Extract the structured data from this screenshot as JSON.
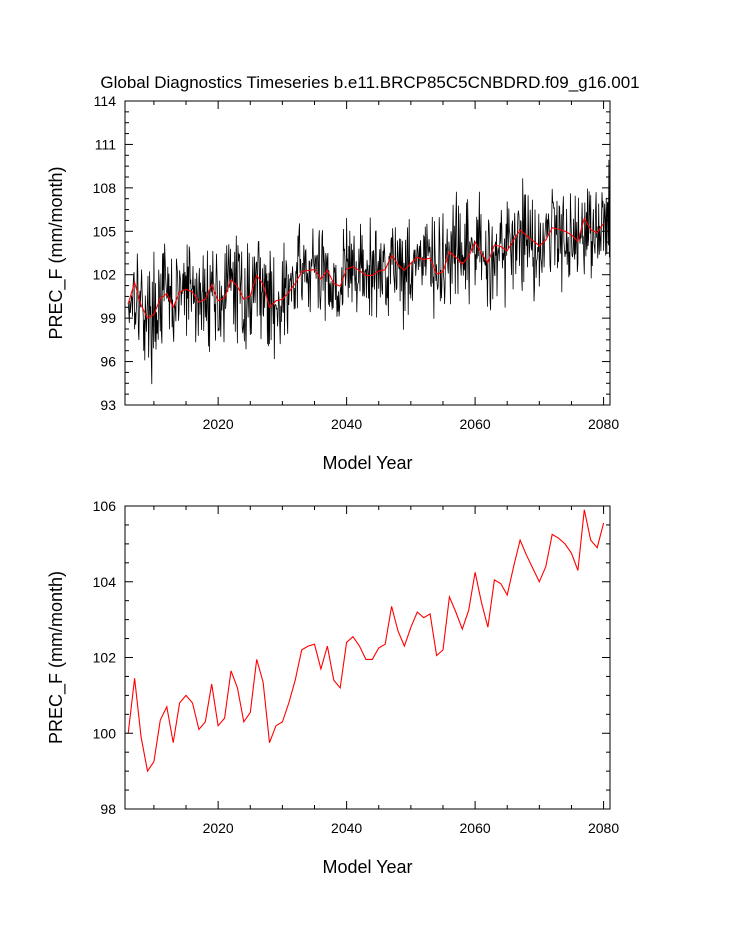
{
  "title": "Global Diagnostics Timeseries b.e11.BRCP85C5CNBDRD.f09_g16.001",
  "colors": {
    "monthly_line": "#000000",
    "annual_line": "#ff0000",
    "axes": "#000000"
  },
  "chart_data": [
    {
      "type": "line",
      "name": "monthly-and-annual-timeseries",
      "xlabel": "Model Year",
      "ylabel": "PREC_F (mm/month)",
      "xlim": [
        2005.5,
        2081
      ],
      "ylim": [
        93,
        114
      ],
      "xticks": [
        2020,
        2040,
        2060,
        2080
      ],
      "yticks": [
        93,
        96,
        99,
        102,
        105,
        108,
        111,
        114
      ],
      "series": [
        {
          "name": "monthly",
          "color": "#000000",
          "x_start": 2006.0,
          "x_step": 0.08333,
          "note": "Monthly values fluctuate approx. +/-3 mm/month around the annual mean; trend from ~100 to ~105.5",
          "generated_from_annual_mean": true,
          "amplitude": 3.0,
          "seed": 17
        },
        {
          "name": "annual_mean",
          "color": "#ff0000",
          "x": [
            2006,
            2007,
            2008,
            2009,
            2010,
            2011,
            2012,
            2013,
            2014,
            2015,
            2016,
            2017,
            2018,
            2019,
            2020,
            2021,
            2022,
            2023,
            2024,
            2025,
            2026,
            2027,
            2028,
            2029,
            2030,
            2031,
            2032,
            2033,
            2034,
            2035,
            2036,
            2037,
            2038,
            2039,
            2040,
            2041,
            2042,
            2043,
            2044,
            2045,
            2046,
            2047,
            2048,
            2049,
            2050,
            2051,
            2052,
            2053,
            2054,
            2055,
            2056,
            2057,
            2058,
            2059,
            2060,
            2061,
            2062,
            2063,
            2064,
            2065,
            2066,
            2067,
            2068,
            2069,
            2070,
            2071,
            2072,
            2073,
            2074,
            2075,
            2076,
            2077,
            2078,
            2079,
            2080
          ],
          "values": [
            100.0,
            101.45,
            99.9,
            99.0,
            99.25,
            100.35,
            100.7,
            99.75,
            100.8,
            101.0,
            100.8,
            100.1,
            100.3,
            101.3,
            100.2,
            100.4,
            101.65,
            101.2,
            100.3,
            100.55,
            101.95,
            101.35,
            99.75,
            100.2,
            100.3,
            100.8,
            101.4,
            102.2,
            102.3,
            102.35,
            101.7,
            102.3,
            101.4,
            101.2,
            102.4,
            102.55,
            102.3,
            101.95,
            101.95,
            102.25,
            102.35,
            103.35,
            102.7,
            102.3,
            102.8,
            103.2,
            103.05,
            103.15,
            102.05,
            102.2,
            103.6,
            103.2,
            102.75,
            103.25,
            104.25,
            103.45,
            102.8,
            104.05,
            103.95,
            103.65,
            104.4,
            105.1,
            104.7,
            104.35,
            104.0,
            104.4,
            105.25,
            105.15,
            105.0,
            104.75,
            104.3,
            105.9,
            105.1,
            104.9,
            105.55
          ]
        }
      ]
    },
    {
      "type": "line",
      "name": "annual-timeseries",
      "xlabel": "Model Year",
      "ylabel": "PREC_F (mm/month)",
      "xlim": [
        2005.5,
        2081
      ],
      "ylim": [
        98,
        106
      ],
      "xticks": [
        2020,
        2040,
        2060,
        2080
      ],
      "yticks": [
        98,
        100,
        102,
        104,
        106
      ],
      "series": [
        {
          "name": "annual_mean",
          "color": "#ff0000",
          "x": [
            2006,
            2007,
            2008,
            2009,
            2010,
            2011,
            2012,
            2013,
            2014,
            2015,
            2016,
            2017,
            2018,
            2019,
            2020,
            2021,
            2022,
            2023,
            2024,
            2025,
            2026,
            2027,
            2028,
            2029,
            2030,
            2031,
            2032,
            2033,
            2034,
            2035,
            2036,
            2037,
            2038,
            2039,
            2040,
            2041,
            2042,
            2043,
            2044,
            2045,
            2046,
            2047,
            2048,
            2049,
            2050,
            2051,
            2052,
            2053,
            2054,
            2055,
            2056,
            2057,
            2058,
            2059,
            2060,
            2061,
            2062,
            2063,
            2064,
            2065,
            2066,
            2067,
            2068,
            2069,
            2070,
            2071,
            2072,
            2073,
            2074,
            2075,
            2076,
            2077,
            2078,
            2079,
            2080
          ],
          "values": [
            100.0,
            101.45,
            99.9,
            99.0,
            99.25,
            100.35,
            100.7,
            99.75,
            100.8,
            101.0,
            100.8,
            100.1,
            100.3,
            101.3,
            100.2,
            100.4,
            101.65,
            101.2,
            100.3,
            100.55,
            101.95,
            101.35,
            99.75,
            100.2,
            100.3,
            100.8,
            101.4,
            102.2,
            102.3,
            102.35,
            101.7,
            102.3,
            101.4,
            101.2,
            102.4,
            102.55,
            102.3,
            101.95,
            101.95,
            102.25,
            102.35,
            103.35,
            102.7,
            102.3,
            102.8,
            103.2,
            103.05,
            103.15,
            102.05,
            102.2,
            103.6,
            103.2,
            102.75,
            103.25,
            104.25,
            103.45,
            102.8,
            104.05,
            103.95,
            103.65,
            104.4,
            105.1,
            104.7,
            104.35,
            104.0,
            104.4,
            105.25,
            105.15,
            105.0,
            104.75,
            104.3,
            105.9,
            105.1,
            104.9,
            105.55
          ]
        }
      ]
    }
  ]
}
